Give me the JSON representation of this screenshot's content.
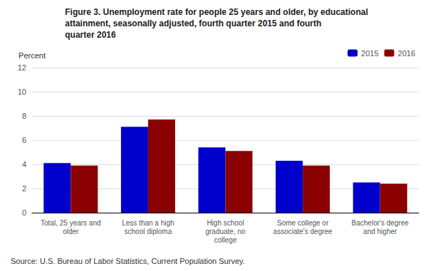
{
  "chart_data": {
    "type": "bar",
    "title": "Figure 3. Unemployment rate for people 25 years and older, by educational\nattainment, seasonally adjusted, fourth quarter 2015 and fourth\nquarter 2016",
    "ylabel": "Percent",
    "annotations": [
      "Source: U.S. Bureau of Labor Statistics, Current Population Survey."
    ],
    "categories": [
      "Total, 25 years and\nolder",
      "Less than a high\nschool diploma",
      "High school\ngraduate, no\ncollege",
      "Some college or\nassociate's degree",
      "Bachelor's degree\nand higher"
    ],
    "series": [
      {
        "name": "2015",
        "color": "#0000CC",
        "values": [
          4.1,
          7.1,
          5.4,
          4.3,
          2.5
        ]
      },
      {
        "name": "2016",
        "color": "#8B0000",
        "values": [
          3.9,
          7.7,
          5.1,
          3.9,
          2.4
        ]
      }
    ],
    "ylim": [
      0,
      12
    ],
    "yticks": [
      0,
      2,
      4,
      6,
      8,
      10,
      12
    ],
    "grid": true,
    "legend": "upper right"
  }
}
